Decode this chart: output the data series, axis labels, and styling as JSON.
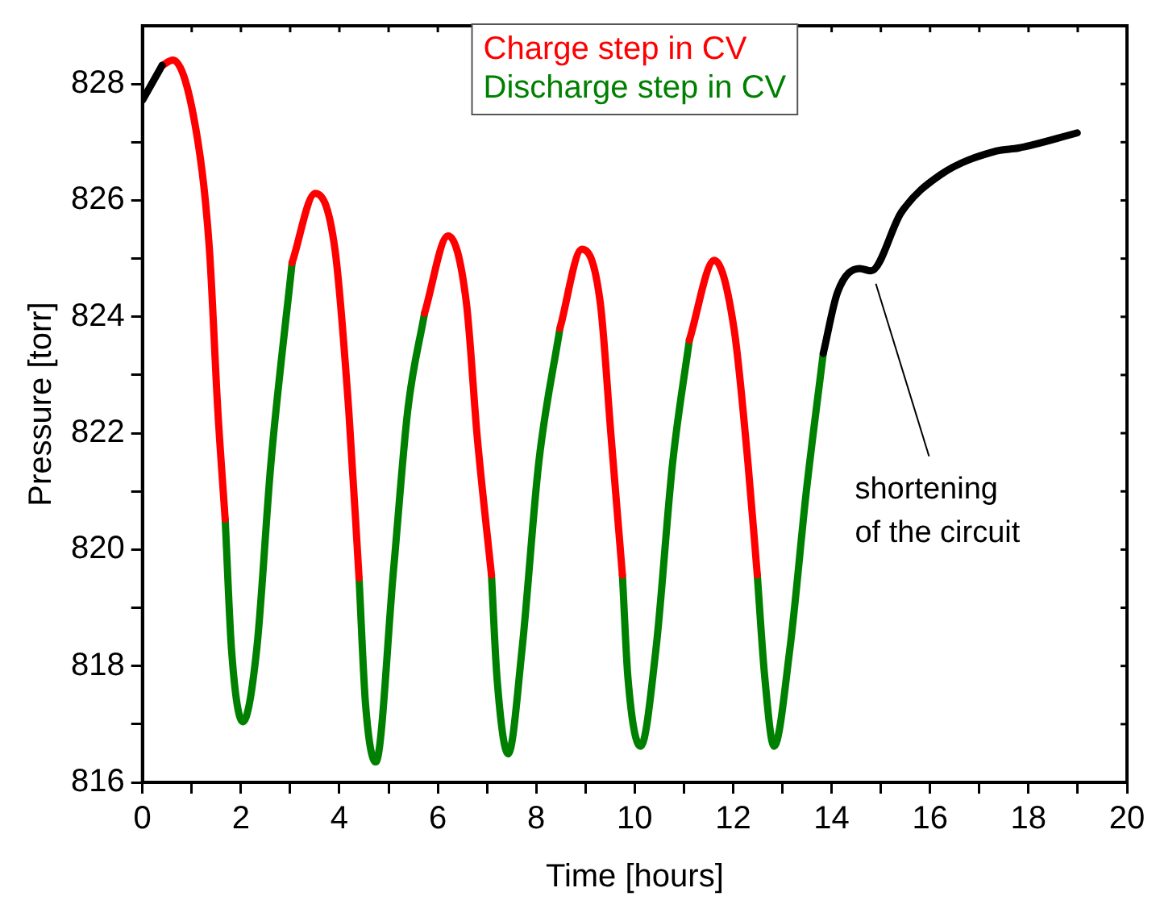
{
  "chart_data": {
    "type": "line",
    "xlabel": "Time [hours]",
    "ylabel": "Pressure [torr]",
    "xlim": [
      0,
      20
    ],
    "xticks": [
      0,
      {
        "value": 1,
        "label": null
      },
      2,
      {
        "value": 3,
        "label": null
      },
      4,
      {
        "value": 5,
        "label": null
      },
      6,
      {
        "value": 7,
        "label": null
      },
      8,
      {
        "value": 9,
        "label": null
      },
      10,
      {
        "value": 11,
        "label": null
      },
      12,
      {
        "value": 13,
        "label": null
      },
      14,
      {
        "value": 15,
        "label": null
      },
      16,
      {
        "value": 17,
        "label": null
      },
      18,
      {
        "value": 19,
        "label": null
      },
      20
    ],
    "ylim": [
      816,
      829
    ],
    "yticks": [
      816,
      {
        "value": 817,
        "label": null
      },
      818,
      {
        "value": 819,
        "label": null
      },
      820,
      {
        "value": 821,
        "label": null
      },
      822,
      {
        "value": 823,
        "label": null
      },
      824,
      {
        "value": 825,
        "label": null
      },
      826,
      {
        "value": 827,
        "label": null
      },
      828
    ],
    "grid": false,
    "legend": "top",
    "marker": "none",
    "line_style": "solid",
    "annotations": [
      {
        "text": "shortening\nof the circuit",
        "x": 14.8,
        "y": 824.79
      }
    ],
    "series": [
      {
        "color": "#000000",
        "x": [
          0,
          0.4,
          7,
          13.83,
          14.12,
          14.57,
          14.8,
          15.42,
          16.21,
          17.35,
          17.8,
          18.99
        ],
        "values": [
          827.72,
          828.32,
          null,
          823.37,
          824.42,
          824.83,
          824.79,
          825.8,
          826.44,
          826.85,
          826.9,
          827.16
        ]
      },
      {
        "name": "Charge step in CV",
        "color": "#ff0000",
        "x": [
          0.4,
          0.62,
          1.13,
          1.36,
          1.53,
          1.68,
          2.4,
          3.04,
          3.51,
          3.91,
          4.19,
          4.4,
          5.0,
          5.73,
          6.21,
          6.58,
          6.8,
          7.09,
          7.8,
          8.48,
          8.93,
          9.3,
          9.52,
          9.75,
          10.4,
          11.11,
          11.62,
          12.02,
          12.3,
          12.49
        ],
        "values": [
          828.32,
          828.41,
          826.99,
          825.16,
          822.4,
          820.52,
          null,
          824.93,
          826.12,
          825.16,
          822.4,
          819.51,
          null,
          824.06,
          825.39,
          824.24,
          821.94,
          819.56,
          null,
          823.8,
          825.16,
          824.24,
          821.94,
          819.56,
          null,
          823.6,
          824.97,
          823.78,
          821.49,
          819.56
        ]
      },
      {
        "name": "Discharge step in CV",
        "color": "#008000",
        "x": [
          1.68,
          1.81,
          2.04,
          2.32,
          2.61,
          3.04,
          3.5,
          4.4,
          4.53,
          4.74,
          5.1,
          5.39,
          5.73,
          6.2,
          7.09,
          7.2,
          7.43,
          7.71,
          8.05,
          8.48,
          8.9,
          9.75,
          9.86,
          10.12,
          10.43,
          10.77,
          11.11,
          11.6,
          12.49,
          12.64,
          12.83,
          13.15,
          13.49,
          13.83
        ],
        "values": [
          820.52,
          818.27,
          817.04,
          818.28,
          821.49,
          824.93,
          null,
          819.51,
          817.36,
          816.35,
          819.65,
          822.4,
          824.06,
          null,
          819.56,
          817.82,
          816.49,
          818.28,
          821.49,
          823.8,
          null,
          819.56,
          817.82,
          816.62,
          818.28,
          821.49,
          823.6,
          null,
          819.56,
          817.82,
          816.62,
          818.28,
          821.03,
          823.37
        ]
      }
    ]
  }
}
